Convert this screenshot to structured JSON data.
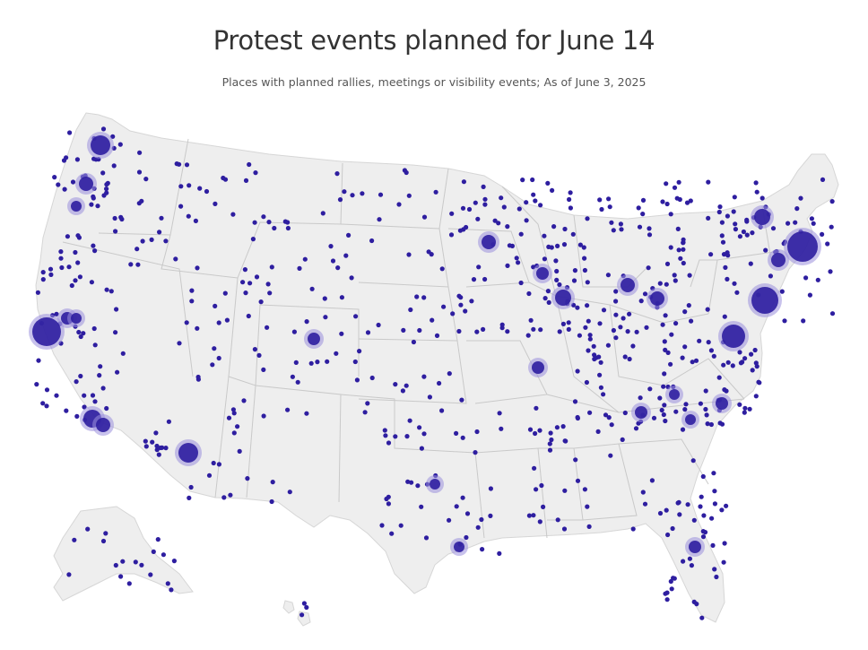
{
  "header": {
    "title": "Protest events planned for June 14",
    "subtitle": "Places with planned rallies, meetings or visibility events; As of June 3, 2025"
  },
  "colors": {
    "land": "#eeeeee",
    "border": "#c9c9c9",
    "dot": "#2e1ea0",
    "halo": "#9a8fdc"
  },
  "map": {
    "region": "United States (contiguous US, Alaska, Hawaii)",
    "marker_type": "event-location dots sized by number of events"
  }
}
